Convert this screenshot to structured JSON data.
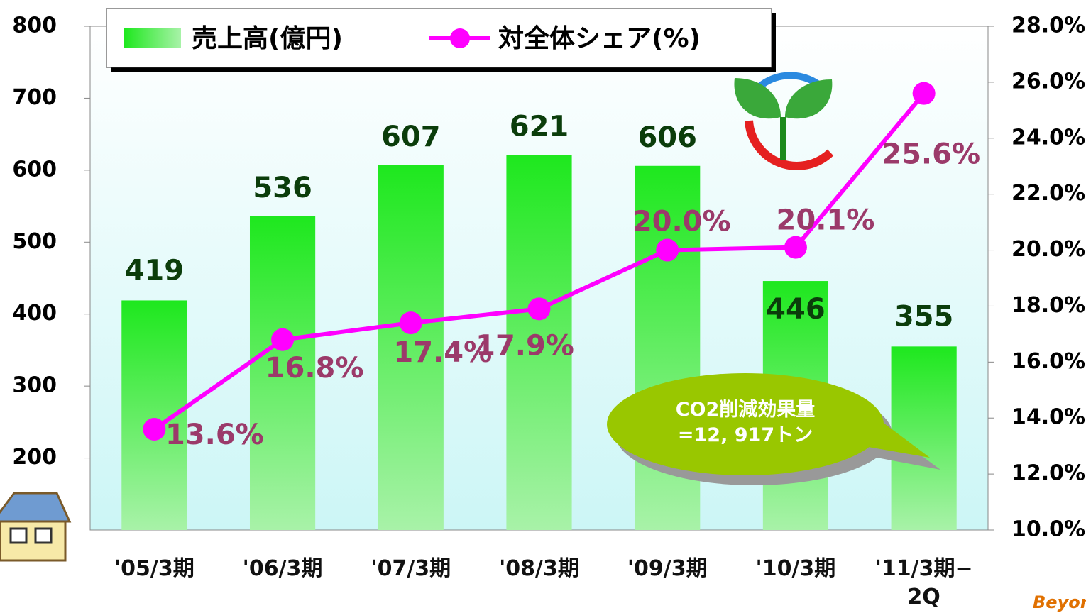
{
  "chart_data": {
    "type": "bar-line",
    "categories": [
      "'05/3期",
      "'06/3期",
      "'07/3期",
      "'08/3期",
      "'09/3期",
      "'10/3期",
      "'11/3期−\n2Q"
    ],
    "series": [
      {
        "name": "売上高(億円)",
        "type": "bar",
        "color": "#22ee22",
        "values": [
          419,
          536,
          607,
          621,
          606,
          446,
          355
        ]
      },
      {
        "name": "対全体シェア(%)",
        "type": "line",
        "axis": "y2",
        "color": "#ff00ff",
        "values": [
          13.6,
          16.8,
          17.4,
          17.9,
          20.0,
          20.1,
          25.6
        ],
        "value_labels": [
          "13.6%",
          "16.8%",
          "17.4%",
          "17.9%",
          "20.0%",
          "20.1%",
          "25.6%"
        ]
      }
    ],
    "ylim": [
      100,
      800
    ],
    "yticks": [
      200,
      300,
      400,
      500,
      600,
      700,
      800
    ],
    "y2lim": [
      10,
      28
    ],
    "y2ticks": [
      {
        "value": 10,
        "label": "10.0%"
      },
      {
        "value": 12,
        "label": "12.0%"
      },
      {
        "value": 14,
        "label": "14.0%"
      },
      {
        "value": 16,
        "label": "16.0%"
      },
      {
        "value": 18,
        "label": "18.0%"
      },
      {
        "value": 20,
        "label": "20.0%"
      },
      {
        "value": 22,
        "label": "22.0%"
      },
      {
        "value": 24,
        "label": "24.0%"
      },
      {
        "value": 26,
        "label": "26.0%"
      },
      {
        "value": 28,
        "label": "28.0%"
      }
    ],
    "annotation": "CO2削減効果量\n=12, 917トン",
    "logo": "Beyond"
  }
}
